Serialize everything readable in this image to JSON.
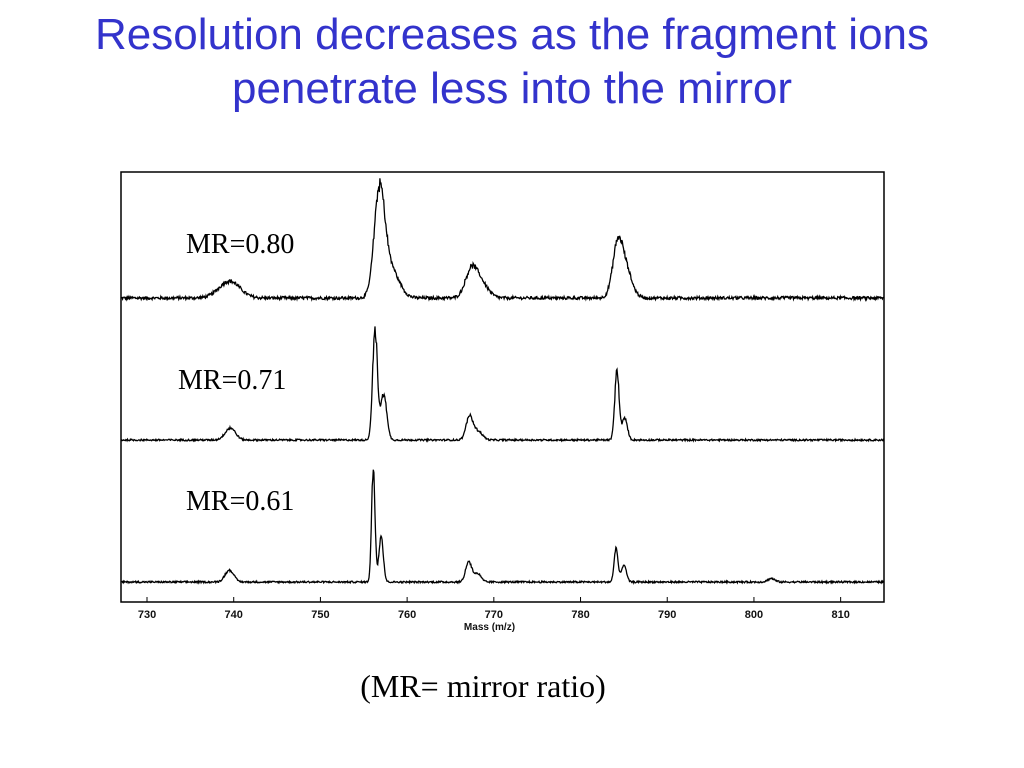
{
  "slide": {
    "title_line1": "Resolution decreases as the fragment ions",
    "title_line2": "penetrate less into the mirror",
    "caption": "(MR= mirror ratio)",
    "title_color": "#3333cc"
  },
  "chart_data": {
    "type": "line",
    "xlabel": "Mass (m/z)",
    "ylabel": "",
    "xlim": [
      727,
      815
    ],
    "xticks": [
      730,
      740,
      750,
      760,
      770,
      780,
      790,
      800,
      810
    ],
    "grid": false,
    "series": [
      {
        "name": "MR=0.80",
        "peaks": [
          {
            "x": 739.5,
            "h": 0.1,
            "w": 1.2
          },
          {
            "x": 756.8,
            "h": 0.58,
            "w": 0.6
          },
          {
            "x": 758.0,
            "h": 0.18,
            "w": 1.0
          },
          {
            "x": 767.4,
            "h": 0.16,
            "w": 0.7
          },
          {
            "x": 768.6,
            "h": 0.08,
            "w": 0.8
          },
          {
            "x": 784.3,
            "h": 0.3,
            "w": 0.6
          },
          {
            "x": 785.3,
            "h": 0.14,
            "w": 0.7
          }
        ]
      },
      {
        "name": "MR=0.71",
        "peaks": [
          {
            "x": 739.6,
            "h": 0.07,
            "w": 0.6
          },
          {
            "x": 756.3,
            "h": 0.64,
            "w": 0.28
          },
          {
            "x": 757.3,
            "h": 0.27,
            "w": 0.35
          },
          {
            "x": 767.2,
            "h": 0.14,
            "w": 0.4
          },
          {
            "x": 768.2,
            "h": 0.05,
            "w": 0.5
          },
          {
            "x": 784.2,
            "h": 0.41,
            "w": 0.25
          },
          {
            "x": 785.1,
            "h": 0.13,
            "w": 0.3
          }
        ]
      },
      {
        "name": "MR=0.61",
        "peaks": [
          {
            "x": 739.5,
            "h": 0.07,
            "w": 0.5
          },
          {
            "x": 756.1,
            "h": 0.66,
            "w": 0.2
          },
          {
            "x": 757.0,
            "h": 0.28,
            "w": 0.25
          },
          {
            "x": 767.1,
            "h": 0.12,
            "w": 0.35
          },
          {
            "x": 768.1,
            "h": 0.05,
            "w": 0.4
          },
          {
            "x": 784.1,
            "h": 0.2,
            "w": 0.22
          },
          {
            "x": 785.0,
            "h": 0.1,
            "w": 0.28
          },
          {
            "x": 802.0,
            "h": 0.02,
            "w": 0.4
          }
        ]
      }
    ]
  }
}
